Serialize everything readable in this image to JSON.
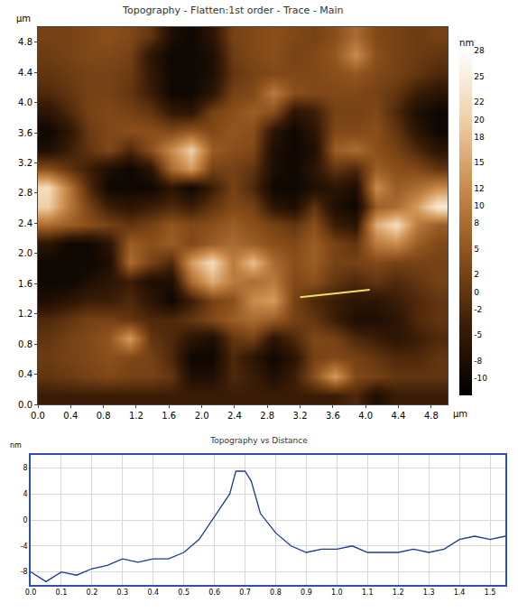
{
  "chart_data": [
    {
      "type": "heatmap",
      "title": "Topography - Flatten:1st order - Trace - Main",
      "x_label": "µm",
      "y_label": "µm",
      "xlim": [
        0,
        5
      ],
      "ylim": [
        0,
        5
      ],
      "xticks": [
        {
          "value": 0,
          "label": "0.0"
        },
        {
          "value": 0.4,
          "label": "0.4"
        },
        {
          "value": 0.8,
          "label": "0.8"
        },
        {
          "value": 1.2,
          "label": "1.2"
        },
        {
          "value": 1.6,
          "label": "1.6"
        },
        {
          "value": 2.0,
          "label": "2.0"
        },
        {
          "value": 2.4,
          "label": "2.4"
        },
        {
          "value": 2.8,
          "label": "2.8"
        },
        {
          "value": 3.2,
          "label": "3.2"
        },
        {
          "value": 3.6,
          "label": "3.6"
        },
        {
          "value": 4.0,
          "label": "4.0"
        },
        {
          "value": 4.4,
          "label": "4.4"
        },
        {
          "value": 4.8,
          "label": "4.8"
        }
      ],
      "yticks": [
        {
          "value": 0,
          "label": "0.0"
        },
        {
          "value": 0.4,
          "label": "0.4"
        },
        {
          "value": 0.8,
          "label": "0.8"
        },
        {
          "value": 1.2,
          "label": "1.2"
        },
        {
          "value": 1.6,
          "label": "1.6"
        },
        {
          "value": 2.0,
          "label": "2.0"
        },
        {
          "value": 2.4,
          "label": "2.4"
        },
        {
          "value": 2.8,
          "label": "2.8"
        },
        {
          "value": 3.2,
          "label": "3.2"
        },
        {
          "value": 3.6,
          "label": "3.6"
        },
        {
          "value": 4.0,
          "label": "4.0"
        },
        {
          "value": 4.4,
          "label": "4.4"
        },
        {
          "value": 4.8,
          "label": "4.8"
        }
      ],
      "x": [
        0.125,
        0.375,
        0.625,
        0.875,
        1.125,
        1.375,
        1.625,
        1.875,
        2.125,
        2.375,
        2.625,
        2.875,
        3.125,
        3.375,
        3.625,
        3.875,
        4.125,
        4.375,
        4.625,
        4.875
      ],
      "y": [
        4.875,
        4.625,
        4.375,
        4.125,
        3.875,
        3.625,
        3.375,
        3.125,
        2.875,
        2.625,
        2.375,
        2.125,
        1.875,
        1.625,
        1.375,
        1.125,
        0.875,
        0.625,
        0.375,
        0.125
      ],
      "z": [
        [
          2,
          2,
          3,
          4,
          3,
          0,
          -8,
          -10,
          -6,
          2,
          3,
          4,
          3,
          2,
          4,
          8,
          3,
          2,
          1,
          2
        ],
        [
          1,
          2,
          3,
          3,
          2,
          -6,
          -10,
          -10,
          -8,
          1,
          3,
          4,
          2,
          3,
          5,
          12,
          4,
          2,
          1,
          0
        ],
        [
          0,
          1,
          2,
          2,
          1,
          -5,
          -10,
          -10,
          -8,
          0,
          2,
          3,
          3,
          3,
          4,
          5,
          3,
          2,
          0,
          -2
        ],
        [
          -2,
          0,
          2,
          2,
          0,
          -4,
          -10,
          -10,
          -6,
          2,
          3,
          10,
          4,
          3,
          3,
          3,
          2,
          0,
          -4,
          -6
        ],
        [
          -6,
          -2,
          2,
          3,
          2,
          0,
          -5,
          -6,
          2,
          4,
          6,
          4,
          -6,
          -4,
          2,
          2,
          3,
          -2,
          -8,
          -10
        ],
        [
          -10,
          -6,
          1,
          3,
          4,
          4,
          3,
          5,
          3,
          5,
          4,
          -6,
          -10,
          -6,
          3,
          3,
          4,
          0,
          -6,
          -10
        ],
        [
          -8,
          -4,
          0,
          3,
          -2,
          4,
          12,
          20,
          6,
          4,
          3,
          -8,
          -10,
          -8,
          6,
          8,
          4,
          2,
          -2,
          -6
        ],
        [
          4,
          0,
          -4,
          -8,
          -10,
          -6,
          8,
          14,
          2,
          2,
          0,
          -8,
          -10,
          -6,
          0,
          -2,
          6,
          4,
          3,
          0
        ],
        [
          22,
          10,
          -2,
          -10,
          -10,
          -10,
          -6,
          -10,
          -4,
          2,
          -2,
          -10,
          -10,
          -8,
          -6,
          -8,
          12,
          6,
          8,
          12
        ],
        [
          20,
          10,
          2,
          -4,
          -6,
          -4,
          -2,
          -4,
          0,
          3,
          2,
          -6,
          -8,
          0,
          -8,
          -10,
          6,
          8,
          14,
          24
        ],
        [
          8,
          6,
          4,
          2,
          0,
          2,
          5,
          3,
          4,
          6,
          4,
          2,
          0,
          4,
          -4,
          -6,
          16,
          22,
          10,
          6
        ],
        [
          -6,
          -10,
          -10,
          -6,
          6,
          4,
          6,
          3,
          6,
          8,
          6,
          4,
          3,
          6,
          2,
          0,
          10,
          12,
          6,
          3
        ],
        [
          -10,
          -10,
          -10,
          -8,
          8,
          2,
          -2,
          14,
          22,
          10,
          18,
          8,
          4,
          6,
          2,
          2,
          3,
          2,
          2,
          2
        ],
        [
          -10,
          -10,
          -8,
          -6,
          -4,
          -8,
          -8,
          8,
          16,
          10,
          8,
          10,
          3,
          4,
          0,
          -2,
          0,
          -2,
          0,
          2
        ],
        [
          -8,
          -6,
          -4,
          -4,
          -2,
          -6,
          -10,
          -4,
          2,
          4,
          12,
          14,
          2,
          -2,
          -4,
          -6,
          -6,
          -4,
          -2,
          0
        ],
        [
          -2,
          0,
          2,
          2,
          0,
          -2,
          -2,
          0,
          3,
          6,
          8,
          6,
          2,
          0,
          -4,
          -8,
          -8,
          -6,
          -2,
          0
        ],
        [
          0,
          2,
          3,
          5,
          14,
          0,
          -2,
          -6,
          -8,
          0,
          2,
          -6,
          -2,
          3,
          2,
          -2,
          -4,
          -6,
          -4,
          -2
        ],
        [
          1,
          2,
          3,
          4,
          3,
          2,
          -2,
          -10,
          -10,
          -2,
          -6,
          -10,
          -6,
          2,
          3,
          2,
          0,
          -2,
          -2,
          0
        ],
        [
          0,
          1,
          2,
          3,
          2,
          2,
          0,
          -8,
          -8,
          -2,
          -4,
          -8,
          -4,
          4,
          14,
          3,
          2,
          0,
          0,
          0
        ],
        [
          -4,
          -4,
          -4,
          -4,
          -4,
          -4,
          -4,
          -4,
          -4,
          -4,
          -4,
          -4,
          -4,
          -4,
          -4,
          -2,
          -8,
          -4,
          -4,
          -4
        ]
      ],
      "colors": [
        "#000000",
        "#3a1c06",
        "#8a4e1a",
        "#c98a4a",
        "#f0d0a8",
        "#ffffff"
      ],
      "colorbar": {
        "title": "nm",
        "range": [
          -12,
          28
        ],
        "ticks": [
          28,
          25,
          22,
          20,
          18,
          15,
          12,
          10,
          8,
          5,
          2,
          0,
          -2,
          -5,
          -8,
          -10
        ]
      },
      "profile_line": {
        "x": [
          3.2,
          4.05
        ],
        "y": [
          1.42,
          1.52
        ],
        "color": "#e8e060"
      }
    },
    {
      "type": "line",
      "title": "Topography vs Distance",
      "y_label": "nm",
      "x": [
        0,
        0.05,
        0.1,
        0.15,
        0.2,
        0.25,
        0.3,
        0.35,
        0.4,
        0.45,
        0.5,
        0.55,
        0.6,
        0.65,
        0.67,
        0.7,
        0.72,
        0.75,
        0.8,
        0.85,
        0.9,
        0.95,
        1.0,
        1.05,
        1.1,
        1.15,
        1.2,
        1.25,
        1.3,
        1.35,
        1.4,
        1.45,
        1.5,
        1.55
      ],
      "values": [
        -8,
        -9.5,
        -8,
        -8.5,
        -7.5,
        -7,
        -6,
        -6.5,
        -6,
        -6,
        -5,
        -3,
        0.5,
        4,
        7.5,
        7.5,
        6,
        1,
        -2,
        -4,
        -5,
        -4.5,
        -4.5,
        -4,
        -5,
        -5,
        -5,
        -4.5,
        -5,
        -4.5,
        -3,
        -2.5,
        -3,
        -2.5
      ],
      "color": "#1a3a9a",
      "xlim": [
        0,
        1.55
      ],
      "ylim": [
        -10,
        10
      ],
      "xticks": [
        {
          "value": 0,
          "label": "0.0"
        },
        {
          "value": 0.1,
          "label": "0.1"
        },
        {
          "value": 0.2,
          "label": "0.2"
        },
        {
          "value": 0.3,
          "label": "0.3"
        },
        {
          "value": 0.4,
          "label": "0.4"
        },
        {
          "value": 0.5,
          "label": "0.5"
        },
        {
          "value": 0.6,
          "label": "0.6"
        },
        {
          "value": 0.7,
          "label": "0.7"
        },
        {
          "value": 0.8,
          "label": "0.8"
        },
        {
          "value": 0.9,
          "label": "0.9"
        },
        {
          "value": 1.0,
          "label": "1.0"
        },
        {
          "value": 1.1,
          "label": "1.1"
        },
        {
          "value": 1.2,
          "label": "1.2"
        },
        {
          "value": 1.3,
          "label": "1.3"
        },
        {
          "value": 1.4,
          "label": "1.4"
        },
        {
          "value": 1.5,
          "label": "1.5"
        }
      ],
      "yticks": [
        -8,
        -4,
        0,
        4,
        8
      ],
      "grid": true
    }
  ]
}
